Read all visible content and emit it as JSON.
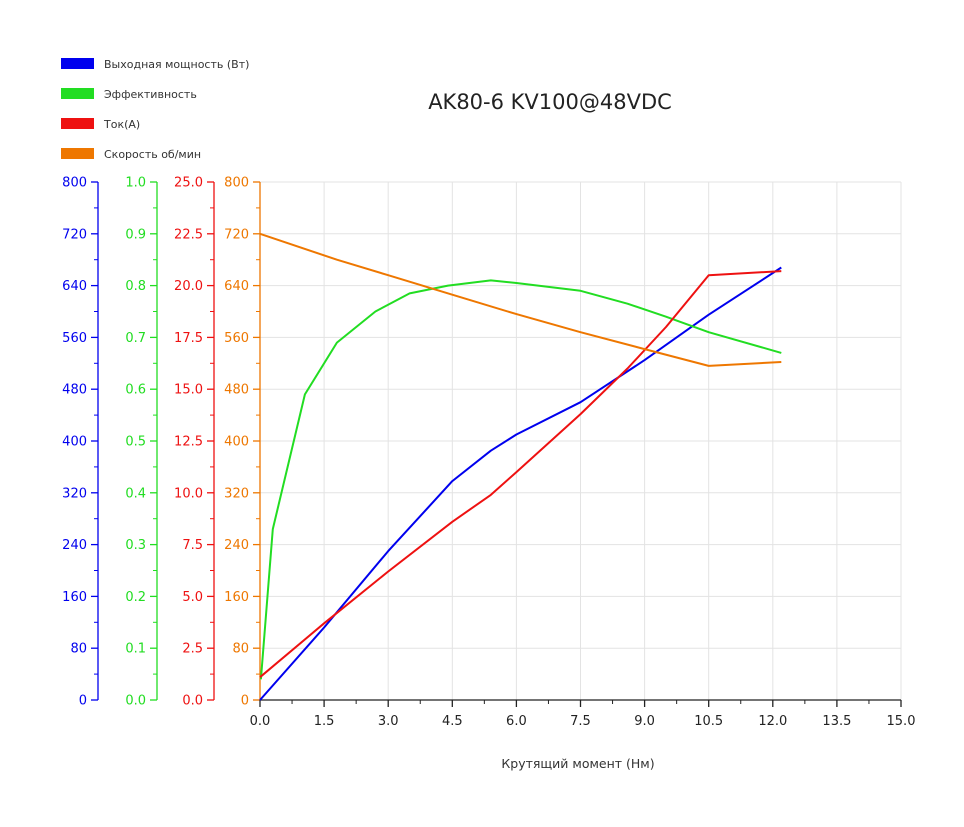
{
  "chart_data": {
    "type": "line",
    "title": "AK80-6 KV100@48VDC",
    "xlabel": "Крутящий момент (Нм)",
    "x_ticks": [
      "0.0",
      "1.5",
      "3.0",
      "4.5",
      "6.0",
      "7.5",
      "9.0",
      "10.5",
      "12.0",
      "13.5",
      "15.0"
    ],
    "xlim": [
      0,
      15
    ],
    "grid": true,
    "legend_position": "top-left",
    "axes": [
      {
        "id": "power",
        "color": "#0000ee",
        "ylim": [
          0,
          800
        ],
        "ticks": [
          "0",
          "80",
          "160",
          "240",
          "320",
          "400",
          "480",
          "560",
          "640",
          "720",
          "800"
        ]
      },
      {
        "id": "efficiency",
        "color": "#22dd22",
        "ylim": [
          0,
          1
        ],
        "ticks": [
          "0.0",
          "0.1",
          "0.2",
          "0.3",
          "0.4",
          "0.5",
          "0.6",
          "0.7",
          "0.8",
          "0.9",
          "1.0"
        ]
      },
      {
        "id": "current",
        "color": "#ee1111",
        "ylim": [
          0,
          25
        ],
        "ticks": [
          "0.0",
          "2.5",
          "5.0",
          "7.5",
          "10.0",
          "12.5",
          "15.0",
          "17.5",
          "20.0",
          "22.5",
          "25.0"
        ]
      },
      {
        "id": "speed",
        "color": "#ee7700",
        "ylim": [
          0,
          800
        ],
        "ticks": [
          "0",
          "80",
          "160",
          "240",
          "320",
          "400",
          "480",
          "560",
          "640",
          "720",
          "800"
        ]
      }
    ],
    "series": [
      {
        "name": "Выходная мощность (Вт)",
        "axis": "power",
        "color": "#0000ee",
        "x": [
          0,
          1.5,
          3.0,
          4.5,
          5.4,
          6.0,
          7.5,
          9.0,
          10.5,
          12.2
        ],
        "y": [
          0,
          112,
          230,
          338,
          385,
          410,
          460,
          525,
          595,
          668
        ]
      },
      {
        "name": "Эффективность",
        "axis": "efficiency",
        "color": "#22dd22",
        "x": [
          0.02,
          0.3,
          1.05,
          1.8,
          2.7,
          3.5,
          4.4,
          5.4,
          6.0,
          7.5,
          8.6,
          9.5,
          10.5,
          12.2
        ],
        "y": [
          0.04,
          0.33,
          0.59,
          0.69,
          0.75,
          0.785,
          0.8,
          0.81,
          0.805,
          0.79,
          0.765,
          0.74,
          0.71,
          0.67
        ]
      },
      {
        "name": "Ток(А)",
        "axis": "current",
        "color": "#ee1111",
        "x": [
          0,
          1.5,
          3.0,
          4.5,
          5.4,
          6.0,
          7.5,
          8.6,
          9.5,
          10.5,
          12.2
        ],
        "y": [
          1.1,
          3.7,
          6.2,
          8.6,
          9.9,
          11.0,
          13.8,
          16.0,
          18.0,
          20.5,
          20.7
        ]
      },
      {
        "name": "Скорость об/мин",
        "axis": "speed",
        "color": "#ee7700",
        "x": [
          0,
          1.8,
          3.0,
          4.5,
          6.0,
          7.5,
          9.0,
          10.5,
          12.2
        ],
        "y": [
          720,
          680,
          656,
          626,
          596,
          568,
          542,
          516,
          522
        ]
      }
    ]
  }
}
